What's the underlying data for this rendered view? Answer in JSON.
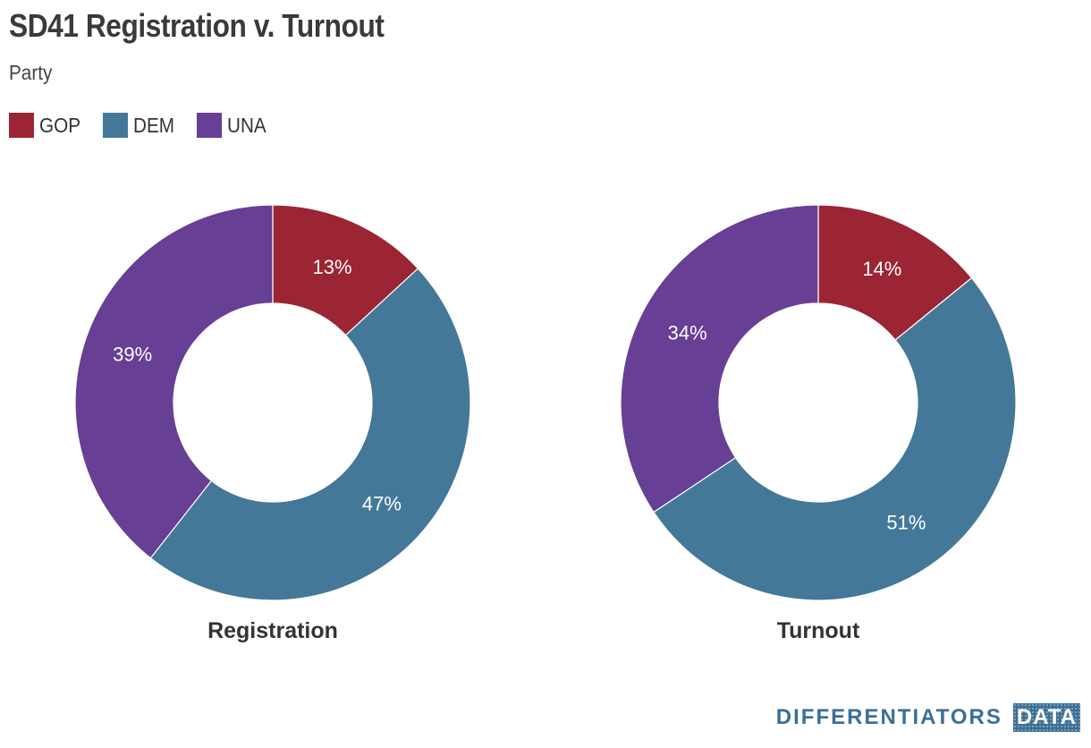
{
  "title": "SD41 Registration v. Turnout",
  "subtitle": "Party",
  "legend": [
    {
      "label": "GOP",
      "color": "#9b2533"
    },
    {
      "label": "DEM",
      "color": "#447898"
    },
    {
      "label": "UNA",
      "color": "#673f95"
    }
  ],
  "brand": {
    "word": "DIFFERENTIATORS",
    "box": "DATA"
  },
  "chart_data": [
    {
      "type": "pie",
      "variant": "donut",
      "label": "Registration",
      "categories": [
        "GOP",
        "DEM",
        "UNA"
      ],
      "values": [
        13,
        47,
        39
      ],
      "value_labels": [
        "13%",
        "47%",
        "39%"
      ],
      "colors": [
        "#9b2533",
        "#447898",
        "#673f95"
      ]
    },
    {
      "type": "pie",
      "variant": "donut",
      "label": "Turnout",
      "categories": [
        "GOP",
        "DEM",
        "UNA"
      ],
      "values": [
        14,
        51,
        34
      ],
      "value_labels": [
        "14%",
        "51%",
        "34%"
      ],
      "colors": [
        "#9b2533",
        "#447898",
        "#673f95"
      ]
    }
  ]
}
